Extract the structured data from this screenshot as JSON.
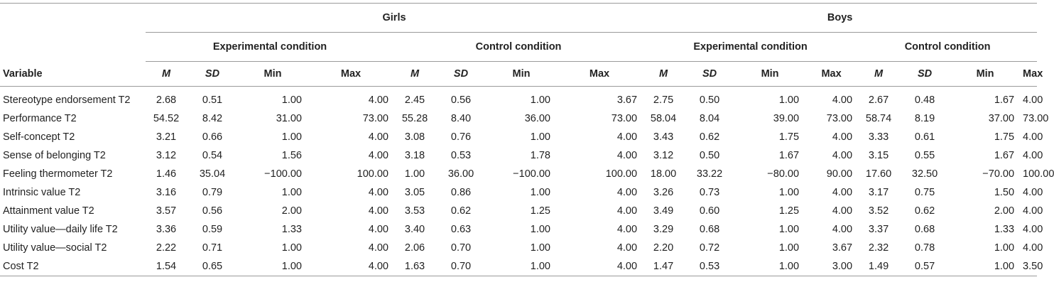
{
  "groups": {
    "girls": "Girls",
    "boys": "Boys"
  },
  "conditions": {
    "experimental": "Experimental condition",
    "control": "Control condition"
  },
  "columns": {
    "variable": "Variable",
    "m": "M",
    "sd": "SD",
    "min": "Min",
    "max": "Max"
  },
  "rows": [
    {
      "variable": "Stereotype endorsement T2",
      "values": [
        "2.68",
        "0.51",
        "1.00",
        "4.00",
        "2.45",
        "0.56",
        "1.00",
        "3.67",
        "2.75",
        "0.50",
        "1.00",
        "4.00",
        "2.67",
        "0.48",
        "1.67",
        "4.00"
      ]
    },
    {
      "variable": "Performance T2",
      "values": [
        "54.52",
        "8.42",
        "31.00",
        "73.00",
        "55.28",
        "8.40",
        "36.00",
        "73.00",
        "58.04",
        "8.04",
        "39.00",
        "73.00",
        "58.74",
        "8.19",
        "37.00",
        "73.00"
      ]
    },
    {
      "variable": "Self-concept T2",
      "values": [
        "3.21",
        "0.66",
        "1.00",
        "4.00",
        "3.08",
        "0.76",
        "1.00",
        "4.00",
        "3.43",
        "0.62",
        "1.75",
        "4.00",
        "3.33",
        "0.61",
        "1.75",
        "4.00"
      ]
    },
    {
      "variable": "Sense of belonging T2",
      "values": [
        "3.12",
        "0.54",
        "1.56",
        "4.00",
        "3.18",
        "0.53",
        "1.78",
        "4.00",
        "3.12",
        "0.50",
        "1.67",
        "4.00",
        "3.15",
        "0.55",
        "1.67",
        "4.00"
      ]
    },
    {
      "variable": "Feeling thermometer T2",
      "values": [
        "1.46",
        "35.04",
        "−100.00",
        "100.00",
        "1.00",
        "36.00",
        "−100.00",
        "100.00",
        "18.00",
        "33.22",
        "−80.00",
        "90.00",
        "17.60",
        "32.50",
        "−70.00",
        "100.00"
      ]
    },
    {
      "variable": "Intrinsic value T2",
      "values": [
        "3.16",
        "0.79",
        "1.00",
        "4.00",
        "3.05",
        "0.86",
        "1.00",
        "4.00",
        "3.26",
        "0.73",
        "1.00",
        "4.00",
        "3.17",
        "0.75",
        "1.50",
        "4.00"
      ]
    },
    {
      "variable": "Attainment value T2",
      "values": [
        "3.57",
        "0.56",
        "2.00",
        "4.00",
        "3.53",
        "0.62",
        "1.25",
        "4.00",
        "3.49",
        "0.60",
        "1.25",
        "4.00",
        "3.52",
        "0.62",
        "2.00",
        "4.00"
      ]
    },
    {
      "variable": "Utility value—daily life T2",
      "values": [
        "3.36",
        "0.59",
        "1.33",
        "4.00",
        "3.40",
        "0.63",
        "1.00",
        "4.00",
        "3.29",
        "0.68",
        "1.00",
        "4.00",
        "3.37",
        "0.68",
        "1.33",
        "4.00"
      ]
    },
    {
      "variable": "Utility value—social T2",
      "values": [
        "2.22",
        "0.71",
        "1.00",
        "4.00",
        "2.06",
        "0.70",
        "1.00",
        "4.00",
        "2.20",
        "0.72",
        "1.00",
        "3.67",
        "2.32",
        "0.78",
        "1.00",
        "4.00"
      ]
    },
    {
      "variable": "Cost T2",
      "values": [
        "1.54",
        "0.65",
        "1.00",
        "4.00",
        "1.63",
        "0.70",
        "1.00",
        "4.00",
        "1.47",
        "0.53",
        "1.00",
        "3.00",
        "1.49",
        "0.57",
        "1.00",
        "3.50"
      ]
    }
  ]
}
